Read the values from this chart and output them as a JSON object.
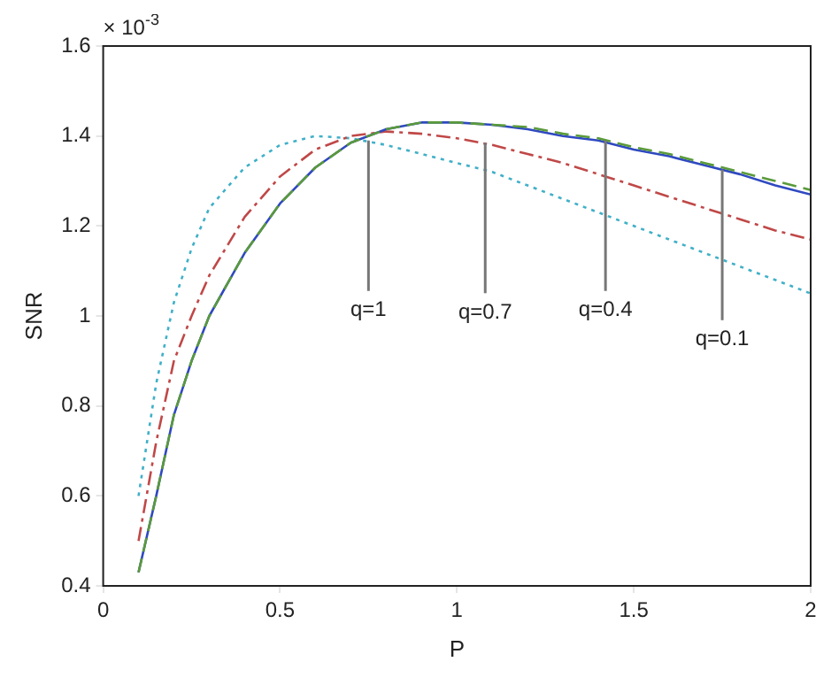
{
  "chart_data": {
    "type": "line",
    "xlabel": "P",
    "ylabel": "SNR",
    "x": [
      0.1,
      0.15,
      0.2,
      0.25,
      0.3,
      0.4,
      0.5,
      0.6,
      0.7,
      0.8,
      0.9,
      1.0,
      1.1,
      1.2,
      1.3,
      1.4,
      1.5,
      1.6,
      1.7,
      1.8,
      1.9,
      2.0
    ],
    "series": [
      {
        "color": "#2f49c0",
        "line_style": "solid",
        "values": [
          0.43,
          0.6,
          0.78,
          0.9,
          1.0,
          1.14,
          1.25,
          1.33,
          1.385,
          1.415,
          1.43,
          1.43,
          1.425,
          1.415,
          1.4,
          1.39,
          1.37,
          1.355,
          1.335,
          1.315,
          1.29,
          1.27
        ]
      },
      {
        "color": "#5a9a3a",
        "line_style": "dashed",
        "values": [
          0.43,
          0.6,
          0.78,
          0.9,
          1.0,
          1.14,
          1.25,
          1.33,
          1.385,
          1.415,
          1.43,
          1.43,
          1.425,
          1.42,
          1.405,
          1.395,
          1.375,
          1.36,
          1.34,
          1.32,
          1.3,
          1.28
        ]
      },
      {
        "color": "#c04848",
        "line_style": "dashdot",
        "values": [
          0.5,
          0.72,
          0.9,
          1.0,
          1.09,
          1.22,
          1.31,
          1.37,
          1.4,
          1.41,
          1.405,
          1.395,
          1.38,
          1.36,
          1.34,
          1.315,
          1.29,
          1.265,
          1.24,
          1.215,
          1.19,
          1.17
        ]
      },
      {
        "color": "#40b0c8",
        "line_style": "dotted",
        "values": [
          0.6,
          0.85,
          1.03,
          1.15,
          1.24,
          1.33,
          1.38,
          1.4,
          1.395,
          1.38,
          1.36,
          1.34,
          1.32,
          1.29,
          1.26,
          1.23,
          1.2,
          1.17,
          1.14,
          1.11,
          1.08,
          1.05
        ]
      }
    ],
    "xlim": [
      0,
      2
    ],
    "xticks": [
      0,
      0.5,
      1,
      1.5,
      2
    ],
    "ylim": [
      0.4,
      1.6
    ],
    "yticks": [
      0.4,
      0.6,
      0.8,
      1,
      1.2,
      1.4,
      1.6
    ],
    "annotations": [
      "× 10$^{-3}$",
      {
        "text": "q=1",
        "x": 0.75,
        "y": 1.39
      },
      {
        "text": "q=0.7",
        "x": 1.08,
        "y": 1.385
      },
      {
        "text": "q=0.4",
        "x": 1.42,
        "y": 1.39
      },
      {
        "text": "q=0.1",
        "x": 1.75,
        "y": 1.325
      }
    ],
    "grid": false,
    "legend": false,
    "marker": "none"
  }
}
